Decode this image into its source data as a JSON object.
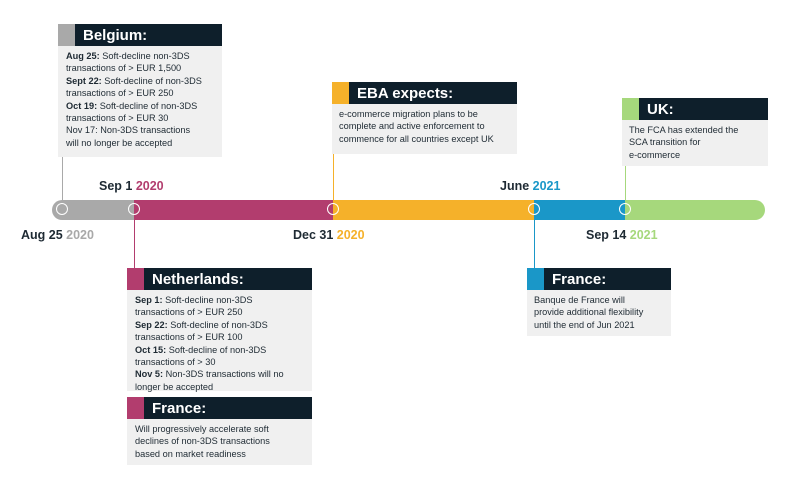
{
  "colors": {
    "gray": "#a9a9a9",
    "magenta": "#b23d6e",
    "orange": "#f5b12a",
    "blue": "#1a97c8",
    "green": "#a6d87c",
    "navy": "#0e1f2b",
    "box_bg": "#f0f0f0"
  },
  "dates": {
    "aug25": {
      "text": "Aug 25 ",
      "year": "2020"
    },
    "sep1": {
      "text": "Sep 1 ",
      "year": "2020"
    },
    "dec31": {
      "text": "Dec 31 ",
      "year": "2020"
    },
    "june": {
      "text": "June ",
      "year": "2021"
    },
    "sep14": {
      "text": "Sep 14 ",
      "year": "2021"
    }
  },
  "belgium": {
    "title": "Belgium:",
    "lines": [
      {
        "b": "Aug 25: ",
        "t": "Soft-decline non-3DS"
      },
      {
        "b": "",
        "t": "transactions of > EUR 1,500"
      },
      {
        "b": "Sept 22: ",
        "t": "Soft-decline of non-3DS"
      },
      {
        "b": "",
        "t": "transactions of > EUR 250"
      },
      {
        "b": "Oct 19: ",
        "t": "Soft-decline of non-3DS"
      },
      {
        "b": "",
        "t": "transactions of > EUR 30"
      },
      {
        "b": "",
        "t": "Nov 17: Non-3DS transactions"
      },
      {
        "b": "",
        "t": "will no longer be accepted"
      }
    ]
  },
  "eba": {
    "title": "EBA expects:",
    "lines": [
      {
        "b": "",
        "t": "e-commerce migration plans to be"
      },
      {
        "b": "",
        "t": "complete and active enforcement to"
      },
      {
        "b": "",
        "t": "commence for all countries except UK"
      }
    ]
  },
  "uk": {
    "title": "UK:",
    "lines": [
      {
        "b": "",
        "t": "The FCA has extended the"
      },
      {
        "b": "",
        "t": "SCA transition for"
      },
      {
        "b": "",
        "t": "e-commerce"
      }
    ]
  },
  "netherlands": {
    "title": "Netherlands:",
    "lines": [
      {
        "b": "Sep 1: ",
        "t": "Soft-decline non-3DS"
      },
      {
        "b": "",
        "t": "transactions of > EUR 250"
      },
      {
        "b": "Sep 22: ",
        "t": "Soft-decline of non-3DS"
      },
      {
        "b": "",
        "t": "transactions of > EUR 100"
      },
      {
        "b": "Oct 15: ",
        "t": "Soft-decline of non-3DS"
      },
      {
        "b": "",
        "t": "transactions of > 30"
      },
      {
        "b": "Nov 5: ",
        "t": " Non-3DS transactions will no"
      },
      {
        "b": "",
        "t": "longer be accepted"
      }
    ]
  },
  "france_bottom": {
    "title": "France:",
    "lines": [
      {
        "b": "",
        "t": "Will progressively accelerate soft"
      },
      {
        "b": "",
        "t": "declines of non-3DS transactions"
      },
      {
        "b": "",
        "t": "based on market readiness"
      }
    ]
  },
  "france_right": {
    "title": "France:",
    "lines": [
      {
        "b": "",
        "t": "Banque de France will"
      },
      {
        "b": "",
        "t": "provide additional flexibility"
      },
      {
        "b": "",
        "t": "until the end of Jun 2021"
      }
    ]
  }
}
